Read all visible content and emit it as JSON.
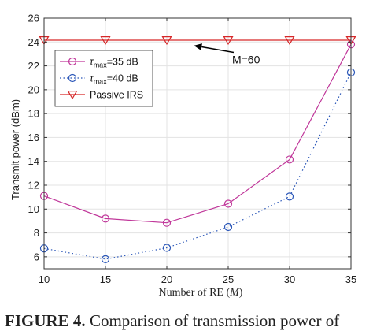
{
  "chart_data": {
    "type": "line",
    "xlabel_prefix": "Number of RE (",
    "xlabel_var": "M",
    "xlabel_suffix": ")",
    "ylabel": "Transmit power (dBm)",
    "x": [
      10,
      15,
      20,
      25,
      30,
      35
    ],
    "xlim": [
      10,
      35
    ],
    "ylim": [
      5,
      26
    ],
    "xticks": [
      10,
      15,
      20,
      25,
      30,
      35
    ],
    "yticks": [
      6,
      8,
      10,
      12,
      14,
      16,
      18,
      20,
      22,
      24,
      26
    ],
    "grid": true,
    "legend_position": "top-left",
    "series": [
      {
        "name": "τmax=35 dB",
        "label_base": "τ",
        "label_sub": "max",
        "label_tail": "=35 dB",
        "values": [
          11.1,
          9.2,
          8.85,
          10.45,
          14.15,
          23.8
        ],
        "color": "#c0379a",
        "line": "solid",
        "marker": "circle"
      },
      {
        "name": "τmax=40 dB",
        "label_base": "τ",
        "label_sub": "max",
        "label_tail": "=40 dB",
        "values": [
          6.7,
          5.8,
          6.75,
          8.5,
          11.05,
          21.45
        ],
        "color": "#2a56b8",
        "line": "dotted",
        "marker": "circle"
      },
      {
        "name": "Passive IRS",
        "values": [
          24.15,
          24.15,
          24.15,
          24.15,
          24.15,
          24.15
        ],
        "color": "#d62728",
        "line": "solid",
        "marker": "triangle-down"
      }
    ],
    "annotation": {
      "text": "M=60",
      "x": 26.6,
      "y": 22.6,
      "arrow_to": [
        22.2,
        23.7
      ]
    }
  },
  "caption": {
    "label": "FIGURE 4.",
    "text": "Comparison of transmission power of"
  }
}
